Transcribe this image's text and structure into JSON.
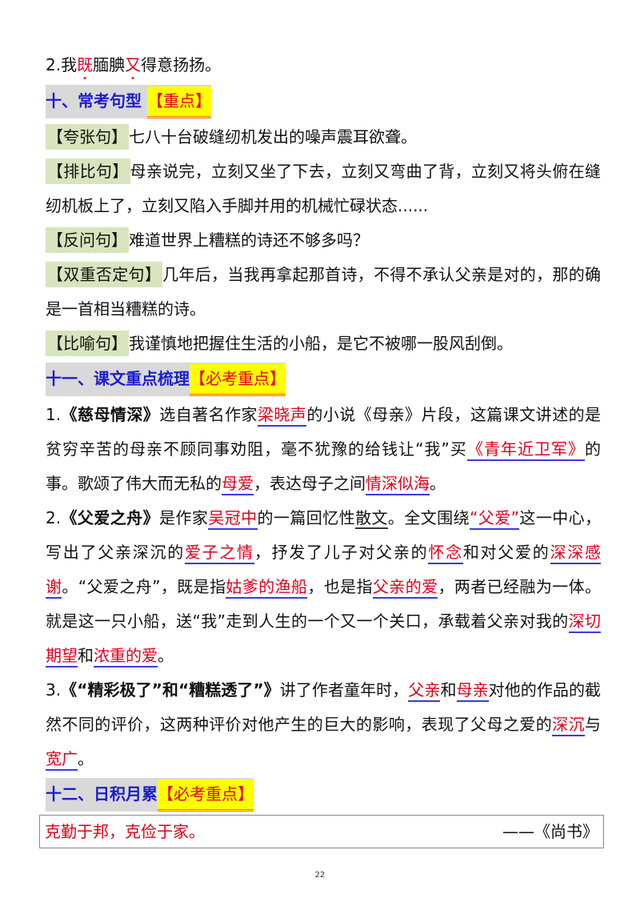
{
  "paragraphs_top": [
    {
      "kind": "p",
      "segments": [
        {
          "t": "2.我"
        },
        {
          "t": "既",
          "c": "dot"
        },
        {
          "t": "腼腆"
        },
        {
          "t": "又",
          "c": "dot"
        },
        {
          "t": "得意扬扬。"
        }
      ]
    }
  ],
  "section10": {
    "title": "十、常考句型",
    "tag": "【重点】"
  },
  "sentence_types": [
    {
      "label": "【夸张句】",
      "text": "七八十台破缝纫机发出的噪声震耳欲聋。"
    },
    {
      "label": "【排比句】",
      "text": "母亲说完，立刻又坐了下去，立刻又弯曲了背，立刻又将头俯在缝纫机板上了，立刻又陷入手脚并用的机械忙碌状态......"
    },
    {
      "label": "【反问句】",
      "text": "难道世界上糟糕的诗还不够多吗？"
    },
    {
      "label": "【双重否定句】",
      "text": "几年后，当我再拿起那首诗，不得不承认父亲是对的，那的确是一首相当糟糕的诗。"
    },
    {
      "label": "【比喻句】",
      "text": "我谨慎地把握住生活的小船，是它不被哪一股风刮倒。"
    }
  ],
  "section11": {
    "title": "十一、课文重点梳理",
    "tag": "【必考重点】"
  },
  "summaries": [
    {
      "segments": [
        {
          "t": "1."
        },
        {
          "t": "《慈母情深》",
          "c": "b"
        },
        {
          "t": "选自著名作家"
        },
        {
          "t": "梁晓声",
          "c": "r"
        },
        {
          "t": "的小说《母亲》片段，这篇课文讲述的是贫穷辛苦的母亲不顾同事劝阻，毫不犹豫的给钱让“我”买"
        },
        {
          "t": "《青年近卫军》",
          "c": "r"
        },
        {
          "t": "的事。歌颂了伟大而无私的"
        },
        {
          "t": "母爱",
          "c": "r"
        },
        {
          "t": "，表达母子之间"
        },
        {
          "t": "情深似海",
          "c": "r"
        },
        {
          "t": "。"
        }
      ]
    },
    {
      "segments": [
        {
          "t": "2."
        },
        {
          "t": "《父爱之舟》",
          "c": "b"
        },
        {
          "t": "是作家"
        },
        {
          "t": "吴冠中",
          "c": "r"
        },
        {
          "t": "的一篇回忆性"
        },
        {
          "t": "散文",
          "c": "u"
        },
        {
          "t": "。全文围绕"
        },
        {
          "t": "“父爱”",
          "c": "r"
        },
        {
          "t": "这一中心，写出了父亲深沉的"
        },
        {
          "t": "爱子之情",
          "c": "r"
        },
        {
          "t": "，抒发了儿子对父亲的"
        },
        {
          "t": "怀念",
          "c": "r"
        },
        {
          "t": "和对父爱的"
        },
        {
          "t": "深深感谢",
          "c": "r"
        },
        {
          "t": "。“父爱之舟”，既是指"
        },
        {
          "t": "姑爹的渔船",
          "c": "r"
        },
        {
          "t": "，也是指"
        },
        {
          "t": "父亲的爱",
          "c": "r"
        },
        {
          "t": "，两者已经融为一体。就是这一只小船，送“我”走到人生的一个又一个关口，承载着父亲对我的"
        },
        {
          "t": "深切期望",
          "c": "r"
        },
        {
          "t": "和"
        },
        {
          "t": "浓重的爱",
          "c": "r"
        },
        {
          "t": "。"
        }
      ]
    },
    {
      "segments": [
        {
          "t": "3."
        },
        {
          "t": "《“精彩极了”和“糟糕透了”》",
          "c": "b"
        },
        {
          "t": "讲了作者童年时，"
        },
        {
          "t": "父亲",
          "c": "r"
        },
        {
          "t": "和"
        },
        {
          "t": "母亲",
          "c": "r"
        },
        {
          "t": "对他的作品的截然不同的评价，这两种评价对他产生的巨大的影响，表现了父母之爱的"
        },
        {
          "t": "深沉",
          "c": "r"
        },
        {
          "t": "与"
        },
        {
          "t": "宽广",
          "c": "r"
        },
        {
          "t": "。"
        }
      ]
    }
  ],
  "section12": {
    "title": "十二、日积月累",
    "tag": "【必考重点】"
  },
  "quote": {
    "text": "克勤于邦，克俭于家。",
    "source": "——《尚书》"
  },
  "page_number": "22",
  "colors": {
    "accent_red": "#e0001a",
    "heading_blue": "#1c1cd0",
    "highlight_yellow": "#ffff00",
    "label_green": "#d8e4bc",
    "heading_gray": "#d9d9d9"
  }
}
